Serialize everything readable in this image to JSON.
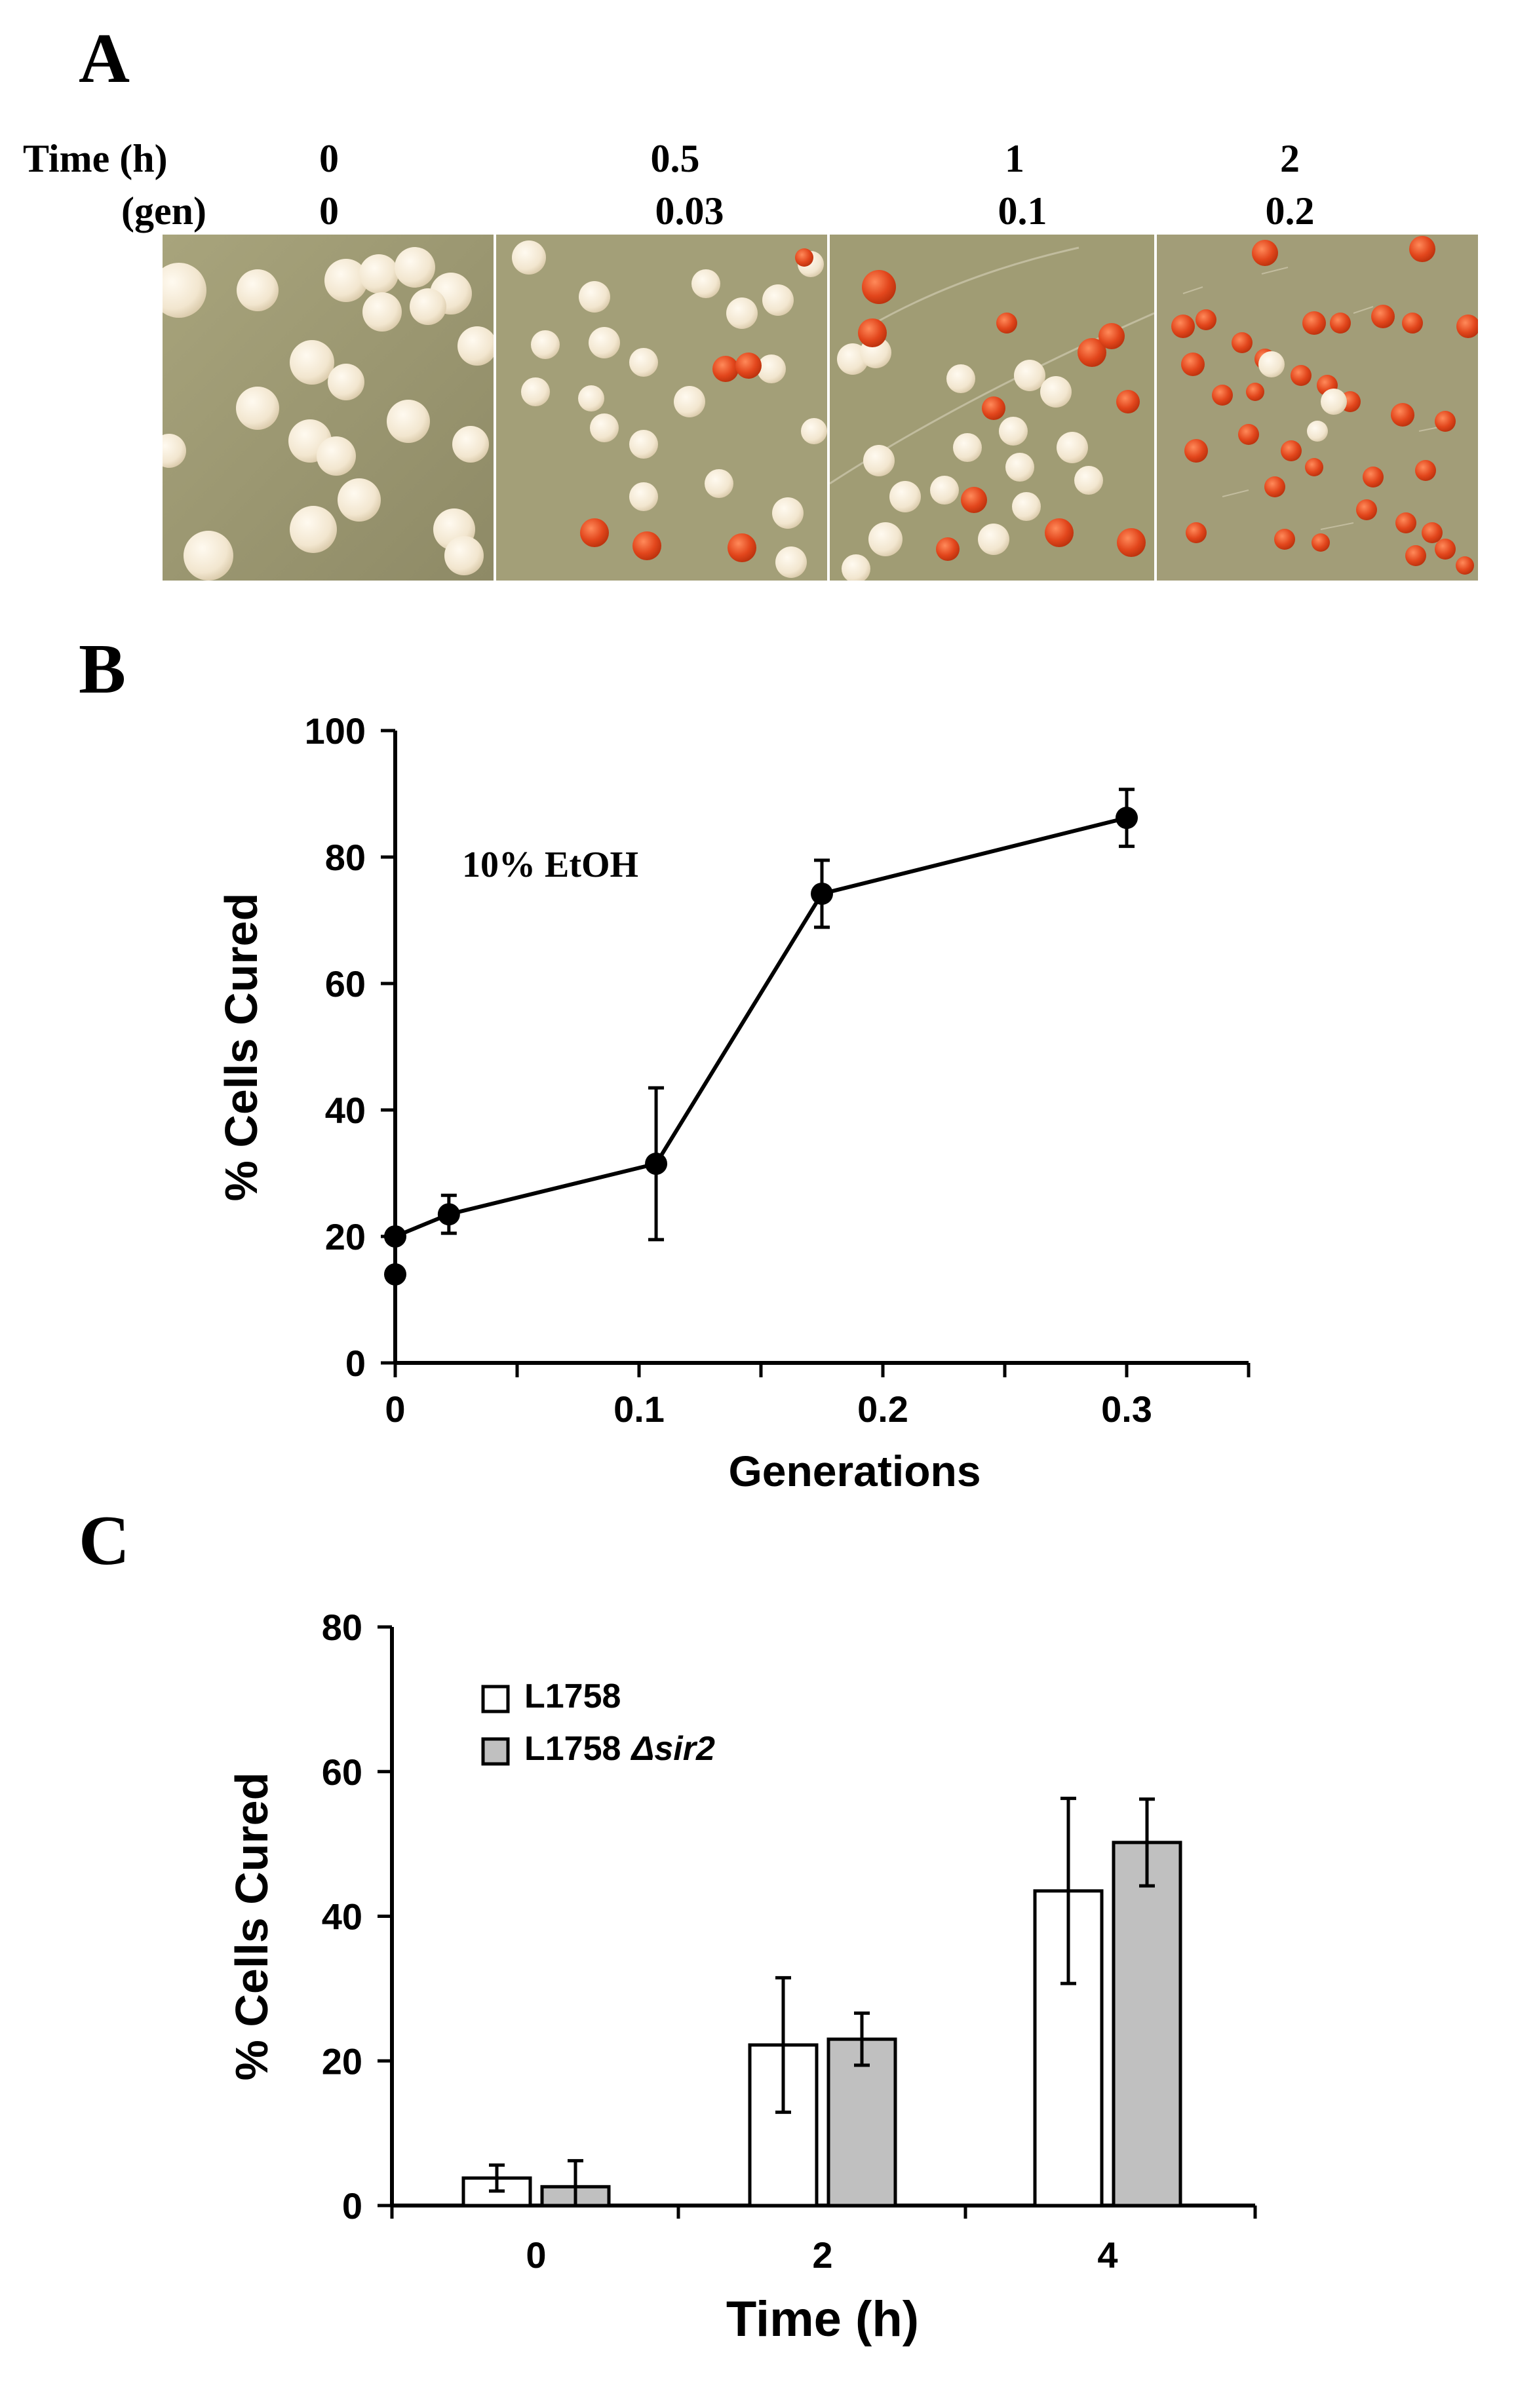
{
  "panels": {
    "a": "A",
    "b": "B",
    "c": "C"
  },
  "panel_a": {
    "row_labels": {
      "time": "Time (h)",
      "gen": "(gen)"
    },
    "columns": [
      {
        "time": "0",
        "gen": "0"
      },
      {
        "time": "0.5",
        "gen": "0.03"
      },
      {
        "time": "1",
        "gen": "0.1"
      },
      {
        "time": "2",
        "gen": "0.2"
      }
    ],
    "colors": {
      "agar": "#9a9670",
      "white_colony": "#f4ead8",
      "red_colony": "#e0451c"
    }
  },
  "chart_data": [
    {
      "type": "line",
      "title": "",
      "annotation": "10% EtOH",
      "xlabel": "Generations",
      "ylabel": "% Cells Cured",
      "xlim": [
        0,
        0.35
      ],
      "ylim": [
        0,
        100
      ],
      "x_ticks": [
        "0",
        "0.1",
        "0.2",
        "0.3"
      ],
      "y_ticks": [
        "0",
        "20",
        "40",
        "60",
        "80",
        "100"
      ],
      "series": [
        {
          "name": "10% EtOH",
          "points": [
            {
              "x": 0,
              "y": 14,
              "err": 0
            },
            {
              "x": 0,
              "y": 20,
              "err": 0
            },
            {
              "x": 0.022,
              "y": 23.5,
              "err": 3
            },
            {
              "x": 0.107,
              "y": 31.5,
              "err": 12
            },
            {
              "x": 0.175,
              "y": 74.2,
              "err": 5.3
            },
            {
              "x": 0.3,
              "y": 86.2,
              "err": 4.5
            }
          ]
        }
      ]
    },
    {
      "type": "bar",
      "title": "",
      "xlabel": "Time (h)",
      "ylabel": "% Cells Cured",
      "ylim": [
        0,
        80
      ],
      "categories": [
        "0",
        "2",
        "4"
      ],
      "y_ticks": [
        "0",
        "20",
        "40",
        "60",
        "80"
      ],
      "legend": "top-left",
      "series": [
        {
          "name": "L1758",
          "suffix": "",
          "color": "#ffffff",
          "values": [
            3.8,
            22.2,
            43.5
          ],
          "errors": [
            1.8,
            9.3,
            12.8
          ]
        },
        {
          "name": "L1758",
          "suffix": "Δsir2",
          "color": "#c0c0c0",
          "values": [
            2.6,
            23,
            50.2
          ],
          "errors": [
            3.6,
            3.6,
            6
          ]
        }
      ]
    }
  ]
}
